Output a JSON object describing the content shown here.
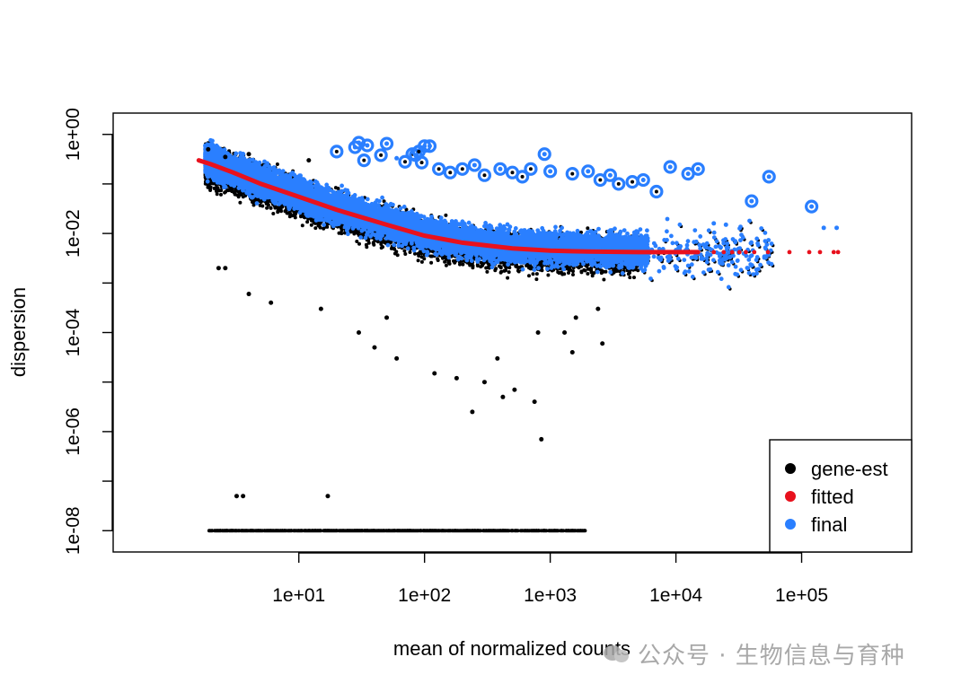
{
  "chart_data": {
    "type": "scatter",
    "title": "",
    "xlabel": "mean of normalized counts",
    "ylabel": "dispersion",
    "x_scale": "log10",
    "y_scale": "log10",
    "xlim": [
      1,
      250000
    ],
    "ylim": [
      1e-08,
      1
    ],
    "x_ticks": [
      {
        "value": 10,
        "label": "1e+01"
      },
      {
        "value": 100,
        "label": "1e+02"
      },
      {
        "value": 1000,
        "label": "1e+03"
      },
      {
        "value": 10000,
        "label": "1e+04"
      },
      {
        "value": 100000,
        "label": "1e+05"
      }
    ],
    "y_ticks": [
      {
        "value": 1,
        "label": "1e+00"
      },
      {
        "value": 0.1,
        "label": ""
      },
      {
        "value": 0.01,
        "label": "1e-02"
      },
      {
        "value": 0.001,
        "label": ""
      },
      {
        "value": 0.0001,
        "label": "1e-04"
      },
      {
        "value": 1e-05,
        "label": ""
      },
      {
        "value": 1e-06,
        "label": "1e-06"
      },
      {
        "value": 1e-07,
        "label": ""
      },
      {
        "value": 1e-08,
        "label": "1e-08"
      }
    ],
    "grid": false,
    "legend_position": "bottom-right",
    "colors": {
      "gene-est": "#000000",
      "fitted": "#e8111d",
      "final": "#2a7fff"
    },
    "series": [
      {
        "name": "gene-est",
        "color": "#000000",
        "points": [
          [
            3.2,
            5e-08
          ],
          [
            3.6,
            5e-08
          ],
          [
            17,
            5e-08
          ],
          [
            850,
            7e-07
          ],
          [
            240,
            2.5e-06
          ],
          [
            750,
            4e-06
          ],
          [
            420,
            5e-06
          ],
          [
            520,
            7e-06
          ],
          [
            300,
            1e-05
          ],
          [
            180,
            1.2e-05
          ],
          [
            120,
            1.5e-05
          ],
          [
            60,
            3e-05
          ],
          [
            40,
            5e-05
          ],
          [
            30,
            0.0001
          ],
          [
            50,
            0.0002
          ],
          [
            15,
            0.0003
          ],
          [
            6,
            0.0004
          ],
          [
            4,
            0.0006
          ],
          [
            2.6,
            0.002
          ],
          [
            2.3,
            0.002
          ],
          [
            2600,
            6e-05
          ],
          [
            1500,
            4e-05
          ],
          [
            1300,
            0.0001
          ],
          [
            800,
            0.0001
          ],
          [
            380,
            3e-05
          ],
          [
            1.9,
            0.5
          ],
          [
            2.6,
            0.35
          ],
          [
            4,
            0.4
          ],
          [
            12,
            0.3
          ],
          [
            1600,
            0.0002
          ],
          [
            2400,
            0.0003
          ]
        ]
      },
      {
        "name": "fitted",
        "color": "#e8111d",
        "points": [
          [
            1.6,
            0.3
          ],
          [
            2,
            0.25
          ],
          [
            3,
            0.17
          ],
          [
            5,
            0.1
          ],
          [
            10,
            0.055
          ],
          [
            20,
            0.03
          ],
          [
            50,
            0.015
          ],
          [
            100,
            0.009
          ],
          [
            200,
            0.0065
          ],
          [
            500,
            0.005
          ],
          [
            1000,
            0.0045
          ],
          [
            2000,
            0.0043
          ],
          [
            5000,
            0.0042
          ],
          [
            15000,
            0.0042
          ],
          [
            20000,
            0.0042
          ],
          [
            24000,
            0.0042
          ],
          [
            28000,
            0.0042
          ],
          [
            32000,
            0.0042
          ],
          [
            36000,
            0.0042
          ],
          [
            42000,
            0.0042
          ],
          [
            54000,
            0.0042
          ],
          [
            80000,
            0.0042
          ],
          [
            115000,
            0.0042
          ],
          [
            140000,
            0.0042
          ],
          [
            180000,
            0.0042
          ],
          [
            195000,
            0.0042
          ]
        ]
      },
      {
        "name": "final",
        "color": "#2a7fff",
        "points": [
          [
            30,
            0.68
          ],
          [
            35,
            0.6
          ],
          [
            50,
            0.65
          ],
          [
            28,
            0.55
          ],
          [
            100,
            0.58
          ],
          [
            110,
            0.58
          ],
          [
            900,
            0.4
          ],
          [
            85,
            0.38
          ],
          [
            60,
            0.33
          ],
          [
            250,
            0.24
          ],
          [
            400,
            0.2
          ],
          [
            1000,
            0.18
          ],
          [
            2000,
            0.18
          ],
          [
            3000,
            0.15
          ],
          [
            5500,
            0.12
          ],
          [
            9000,
            0.22
          ],
          [
            12500,
            0.16
          ],
          [
            15000,
            0.2
          ],
          [
            40000,
            0.045
          ],
          [
            55000,
            0.14
          ],
          [
            120000,
            0.035
          ],
          [
            150000,
            0.013
          ],
          [
            190000,
            0.013
          ],
          [
            20000,
            0.016
          ],
          [
            25000,
            0.015
          ]
        ]
      }
    ],
    "outlier_circles": [
      [
        30,
        0.68
      ],
      [
        35,
        0.6
      ],
      [
        50,
        0.65
      ],
      [
        20,
        0.45
      ],
      [
        28,
        0.55
      ],
      [
        45,
        0.38
      ],
      [
        33,
        0.3
      ],
      [
        80,
        0.4
      ],
      [
        85,
        0.38
      ],
      [
        100,
        0.58
      ],
      [
        110,
        0.58
      ],
      [
        90,
        0.45
      ],
      [
        70,
        0.28
      ],
      [
        95,
        0.27
      ],
      [
        130,
        0.2
      ],
      [
        160,
        0.17
      ],
      [
        200,
        0.2
      ],
      [
        250,
        0.24
      ],
      [
        300,
        0.15
      ],
      [
        400,
        0.2
      ],
      [
        500,
        0.17
      ],
      [
        600,
        0.14
      ],
      [
        700,
        0.2
      ],
      [
        900,
        0.4
      ],
      [
        1000,
        0.18
      ],
      [
        1500,
        0.16
      ],
      [
        2000,
        0.18
      ],
      [
        2500,
        0.12
      ],
      [
        3000,
        0.15
      ],
      [
        3500,
        0.1
      ],
      [
        4500,
        0.11
      ],
      [
        5500,
        0.12
      ],
      [
        7000,
        0.07
      ],
      [
        9000,
        0.22
      ],
      [
        12500,
        0.16
      ],
      [
        15000,
        0.2
      ],
      [
        40000,
        0.045
      ],
      [
        55000,
        0.14
      ],
      [
        120000,
        0.035
      ]
    ],
    "legend": [
      {
        "label": "gene-est",
        "color": "#000000"
      },
      {
        "label": "fitted",
        "color": "#e8111d"
      },
      {
        "label": "final",
        "color": "#2a7fff"
      }
    ]
  },
  "watermark": {
    "text": "公众号 · 生物信息与育种",
    "icon": "wechat-icon"
  }
}
